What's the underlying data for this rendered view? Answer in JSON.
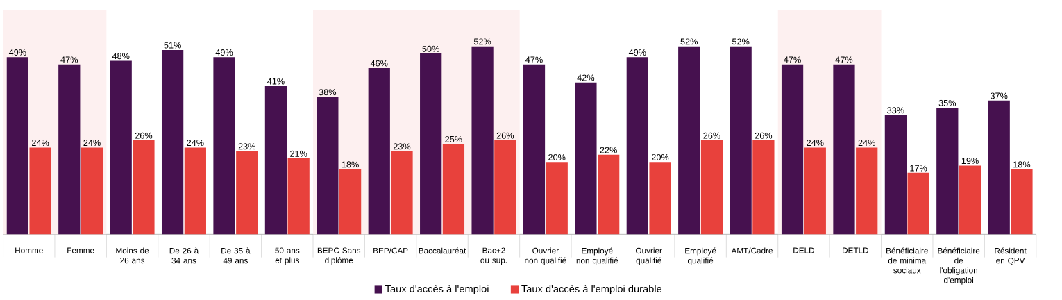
{
  "chart_data": {
    "type": "bar",
    "categories": [
      "Homme",
      "Femme",
      "Moins de 26 ans",
      "De 26 à 34 ans",
      "De 35 à 49 ans",
      "50 ans et plus",
      "BEPC Sans diplôme",
      "BEP/CAP",
      "Baccalauréat",
      "Bac+2 ou sup.",
      "Ouvrier non qualifié",
      "Employé non qualifié",
      "Ouvrier qualifié",
      "Employé qualifié",
      "AMT/Cadre",
      "DELD",
      "DETLD",
      "Bénéficiaire de minima sociaux",
      "Bénéficiaire de l'obligation d'emploi",
      "Résident en QPV"
    ],
    "series": [
      {
        "name": "Taux d'accès à l'emploi",
        "color": "#46114f",
        "values": [
          49,
          47,
          48,
          51,
          49,
          41,
          38,
          46,
          50,
          52,
          47,
          42,
          49,
          52,
          52,
          47,
          47,
          33,
          35,
          37
        ],
        "value_labels": [
          "49%",
          "47%",
          "48%",
          "51%",
          "49%",
          "41%",
          "38%",
          "46%",
          "50%",
          "52%",
          "47%",
          "42%",
          "49%",
          "52%",
          "52%",
          "47%",
          "47%",
          "33%",
          "35%",
          "37%"
        ]
      },
      {
        "name": "Taux d'accès à l'emploi durable",
        "color": "#e8413c",
        "values": [
          24,
          24,
          26,
          24,
          23,
          21,
          18,
          23,
          25,
          26,
          20,
          22,
          20,
          26,
          26,
          24,
          24,
          17,
          19,
          18
        ],
        "value_labels": [
          "24%",
          "24%",
          "26%",
          "24%",
          "23%",
          "21%",
          "18%",
          "23%",
          "25%",
          "26%",
          "20%",
          "22%",
          "20%",
          "26%",
          "26%",
          "24%",
          "24%",
          "17%",
          "19%",
          "18%"
        ]
      }
    ],
    "ylim": [
      0,
      62
    ],
    "bands": [
      {
        "axis": "x",
        "from": "Homme",
        "to": "Femme",
        "color": "#fdf0f0"
      },
      {
        "axis": "x",
        "from": "BEPC Sans diplôme",
        "to": "Bac+2 ou sup.",
        "color": "#fdf0f0"
      },
      {
        "axis": "x",
        "from": "DELD",
        "to": "DETLD",
        "color": "#fdf0f0"
      }
    ],
    "legend": "bottom"
  }
}
